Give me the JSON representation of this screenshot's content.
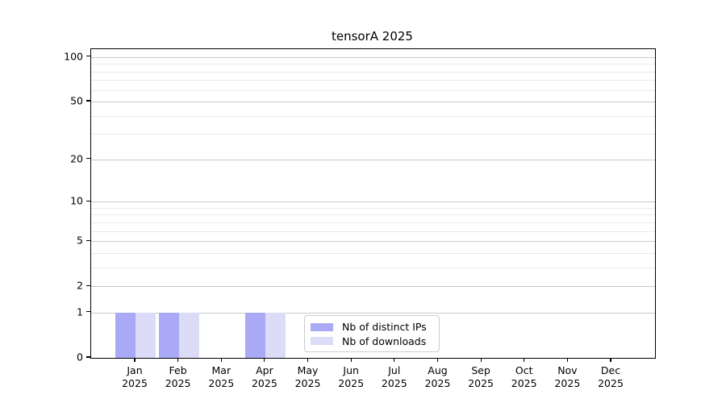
{
  "title": "tensorA 2025",
  "chart_data": {
    "type": "bar",
    "title": "tensorA 2025",
    "categories": [
      "Jan 2025",
      "Feb 2025",
      "Mar 2025",
      "Apr 2025",
      "May 2025",
      "Jun 2025",
      "Jul 2025",
      "Aug 2025",
      "Sep 2025",
      "Oct 2025",
      "Nov 2025",
      "Dec 2025"
    ],
    "series": [
      {
        "name": "Nb of distinct IPs",
        "color": "#a9a9f6",
        "values": [
          1,
          1,
          0,
          1,
          0,
          0,
          0,
          0,
          0,
          0,
          0,
          0
        ]
      },
      {
        "name": "Nb of downloads",
        "color": "#dcdcf9",
        "values": [
          1,
          1,
          0,
          1,
          0,
          0,
          0,
          0,
          0,
          0,
          0,
          0
        ]
      }
    ],
    "xlabel": "",
    "ylabel": "",
    "yscale": "log1p",
    "ylim": [
      0,
      113
    ],
    "y_major_ticks": [
      0,
      1,
      2,
      5,
      10,
      20,
      50,
      100
    ],
    "y_minor_ticks": [
      3,
      4,
      6,
      7,
      8,
      9,
      30,
      40,
      60,
      70,
      80,
      90
    ],
    "grid": "horizontal",
    "legend_position": "lower center inside"
  },
  "colors": {
    "background": "#ffffff",
    "axis": "#000000",
    "grid_major": "#c9c9c9",
    "grid_minor": "#e9e9e9",
    "bar_distinct_ips": "#a9a9f6",
    "bar_downloads": "#dcdcf9",
    "legend_border": "#cccccc"
  }
}
